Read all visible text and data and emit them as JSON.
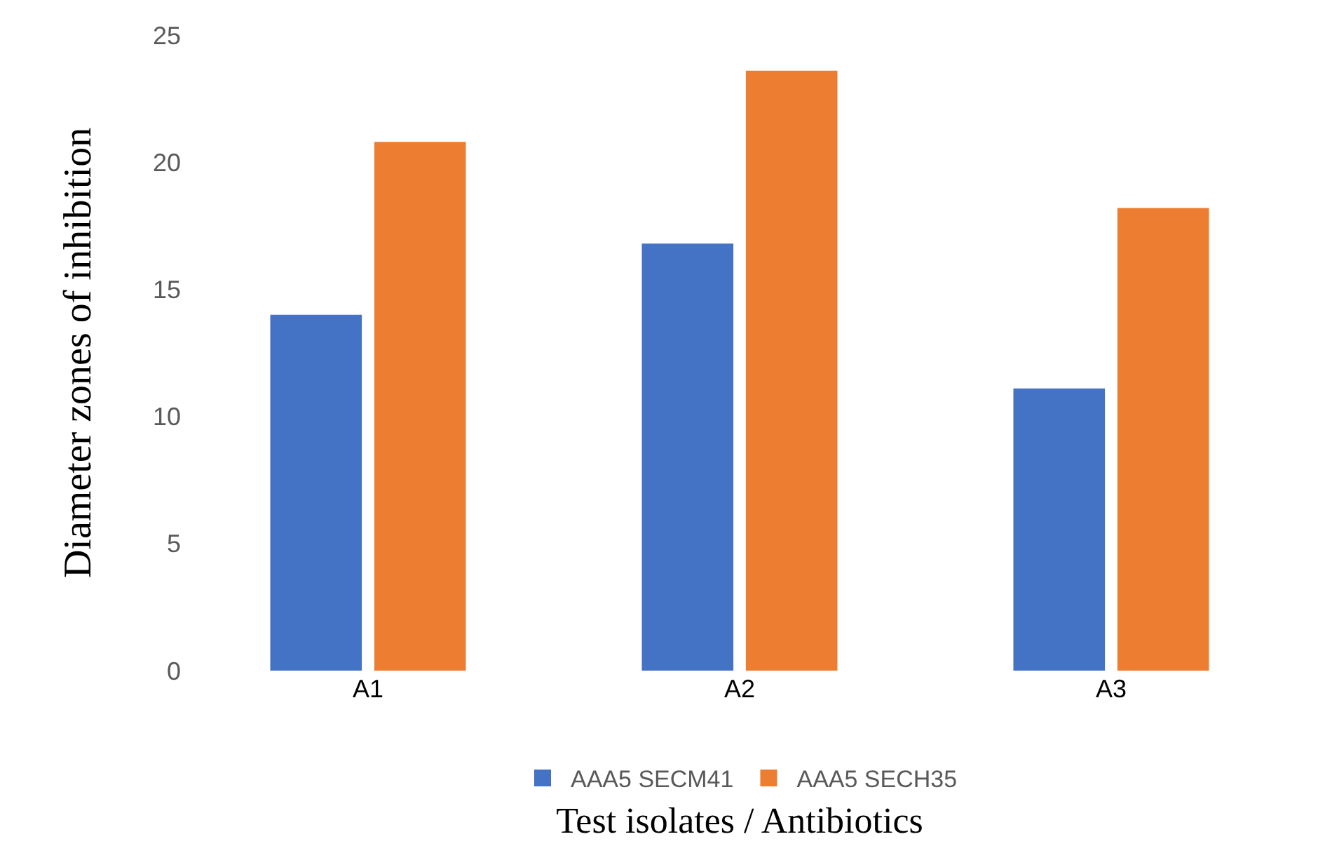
{
  "chart_data": {
    "type": "bar",
    "xlabel": "Test isolates / Antibiotics",
    "ylabel": "Diameter zones of inhibition",
    "categories": [
      "A1",
      "A2",
      "A3"
    ],
    "series": [
      {
        "name": "AAA5 SECM41",
        "color": "#4472c4",
        "values": [
          14.0,
          16.8,
          11.1
        ]
      },
      {
        "name": "AAA5 SECH35",
        "color": "#ed7d31",
        "values": [
          20.8,
          23.6,
          18.2
        ]
      }
    ],
    "ylim": [
      0,
      25
    ],
    "yticks": [
      0,
      5,
      10,
      15,
      20,
      25
    ],
    "grid": false,
    "legend": "bottom"
  }
}
